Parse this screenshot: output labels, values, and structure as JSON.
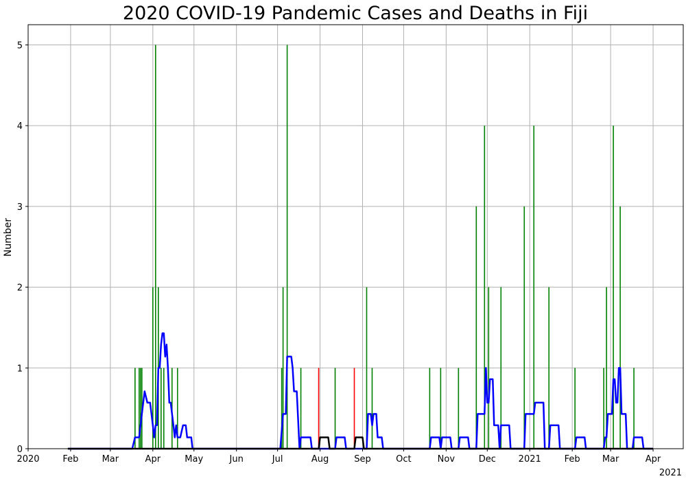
{
  "chart_data": {
    "type": "bar",
    "title": "2020 COVID-19 Pandemic Cases and Deaths in Fiji",
    "xlabel": "",
    "ylabel": "Number",
    "xlim": [
      "2020-01-01",
      "2021-04-23"
    ],
    "ylim": [
      0,
      5.25
    ],
    "grid": true,
    "y_ticks": [
      0,
      1,
      2,
      3,
      4,
      5
    ],
    "x_ticks": [
      {
        "date": "2020-01-01",
        "label": "2020"
      },
      {
        "date": "2020-02-01",
        "label": "Feb"
      },
      {
        "date": "2020-03-01",
        "label": "Mar"
      },
      {
        "date": "2020-04-01",
        "label": "Apr"
      },
      {
        "date": "2020-05-01",
        "label": "May"
      },
      {
        "date": "2020-06-01",
        "label": "Jun"
      },
      {
        "date": "2020-07-01",
        "label": "Jul"
      },
      {
        "date": "2020-08-01",
        "label": "Aug"
      },
      {
        "date": "2020-09-01",
        "label": "Sep"
      },
      {
        "date": "2020-10-01",
        "label": "Oct"
      },
      {
        "date": "2020-11-01",
        "label": "Nov"
      },
      {
        "date": "2020-12-01",
        "label": "Dec"
      },
      {
        "date": "2021-01-01",
        "label": "2021"
      },
      {
        "date": "2021-02-01",
        "label": "Feb"
      },
      {
        "date": "2021-03-01",
        "label": "Mar"
      },
      {
        "date": "2021-04-01",
        "label": "Apr"
      }
    ],
    "offset_label": "2021",
    "colors": {
      "cases": "#008000",
      "deaths": "#ff0000",
      "cases_avg": "#0000ff",
      "deaths_avg": "#000000"
    },
    "series": [
      {
        "kind": "bar",
        "color": "#008000",
        "points": [
          [
            "2020-03-19",
            1
          ],
          [
            "2020-03-22",
            1
          ],
          [
            "2020-03-23",
            1
          ],
          [
            "2020-03-24",
            1
          ],
          [
            "2020-04-01",
            2
          ],
          [
            "2020-04-03",
            5
          ],
          [
            "2020-04-05",
            2
          ],
          [
            "2020-04-07",
            1
          ],
          [
            "2020-04-09",
            1
          ],
          [
            "2020-04-15",
            1
          ],
          [
            "2020-04-19",
            1
          ],
          [
            "2020-07-04",
            1
          ],
          [
            "2020-07-05",
            2
          ],
          [
            "2020-07-08",
            5
          ],
          [
            "2020-07-18",
            1
          ],
          [
            "2020-08-12",
            1
          ],
          [
            "2020-09-04",
            2
          ],
          [
            "2020-09-08",
            1
          ],
          [
            "2020-10-20",
            1
          ],
          [
            "2020-10-28",
            1
          ],
          [
            "2020-11-10",
            1
          ],
          [
            "2020-11-23",
            3
          ],
          [
            "2020-11-29",
            4
          ],
          [
            "2020-12-02",
            2
          ],
          [
            "2020-12-11",
            2
          ],
          [
            "2020-12-28",
            3
          ],
          [
            "2021-01-04",
            4
          ],
          [
            "2021-01-15",
            2
          ],
          [
            "2021-02-03",
            1
          ],
          [
            "2021-02-24",
            1
          ],
          [
            "2021-02-26",
            2
          ],
          [
            "2021-03-03",
            4
          ],
          [
            "2021-03-08",
            3
          ],
          [
            "2021-03-18",
            1
          ]
        ]
      },
      {
        "kind": "bar",
        "color": "#ff0000",
        "points": [
          [
            "2020-07-31",
            1
          ],
          [
            "2020-08-26",
            1
          ]
        ]
      },
      {
        "kind": "line",
        "color": "#0000ff",
        "points": [
          [
            "2020-01-30",
            0
          ],
          [
            "2020-03-17",
            0
          ],
          [
            "2020-03-19",
            0.14
          ],
          [
            "2020-03-22",
            0.14
          ],
          [
            "2020-03-24",
            0.43
          ],
          [
            "2020-03-26",
            0.71
          ],
          [
            "2020-03-28",
            0.57
          ],
          [
            "2020-03-30",
            0.57
          ],
          [
            "2020-04-01",
            0.29
          ],
          [
            "2020-04-02",
            0.14
          ],
          [
            "2020-04-03",
            0.29
          ],
          [
            "2020-04-04",
            0.29
          ],
          [
            "2020-04-05",
            1.0
          ],
          [
            "2020-04-06",
            1.0
          ],
          [
            "2020-04-07",
            1.29
          ],
          [
            "2020-04-08",
            1.43
          ],
          [
            "2020-04-09",
            1.43
          ],
          [
            "2020-04-10",
            1.14
          ],
          [
            "2020-04-11",
            1.29
          ],
          [
            "2020-04-12",
            1.0
          ],
          [
            "2020-04-13",
            0.57
          ],
          [
            "2020-04-14",
            0.57
          ],
          [
            "2020-04-16",
            0.29
          ],
          [
            "2020-04-17",
            0.14
          ],
          [
            "2020-04-18",
            0.29
          ],
          [
            "2020-04-19",
            0.14
          ],
          [
            "2020-04-20",
            0.14
          ],
          [
            "2020-04-21",
            0.14
          ],
          [
            "2020-04-23",
            0.29
          ],
          [
            "2020-04-25",
            0.29
          ],
          [
            "2020-04-26",
            0.14
          ],
          [
            "2020-04-29",
            0.14
          ],
          [
            "2020-04-30",
            0
          ],
          [
            "2020-07-03",
            0
          ],
          [
            "2020-07-05",
            0.43
          ],
          [
            "2020-07-07",
            0.43
          ],
          [
            "2020-07-08",
            1.14
          ],
          [
            "2020-07-11",
            1.14
          ],
          [
            "2020-07-12",
            1.0
          ],
          [
            "2020-07-13",
            0.71
          ],
          [
            "2020-07-15",
            0.71
          ],
          [
            "2020-07-17",
            0
          ],
          [
            "2020-07-18",
            0.14
          ],
          [
            "2020-07-25",
            0.14
          ],
          [
            "2020-07-26",
            0
          ],
          [
            "2020-08-12",
            0
          ],
          [
            "2020-08-13",
            0.14
          ],
          [
            "2020-08-19",
            0.14
          ],
          [
            "2020-08-20",
            0
          ],
          [
            "2020-09-04",
            0
          ],
          [
            "2020-09-05",
            0.43
          ],
          [
            "2020-09-07",
            0.43
          ],
          [
            "2020-09-08",
            0.29
          ],
          [
            "2020-09-09",
            0.43
          ],
          [
            "2020-09-11",
            0.43
          ],
          [
            "2020-09-12",
            0.14
          ],
          [
            "2020-09-15",
            0.14
          ],
          [
            "2020-09-16",
            0
          ],
          [
            "2020-10-20",
            0
          ],
          [
            "2020-10-21",
            0.14
          ],
          [
            "2020-10-27",
            0.14
          ],
          [
            "2020-10-28",
            0
          ],
          [
            "2020-10-29",
            0.14
          ],
          [
            "2020-11-04",
            0.14
          ],
          [
            "2020-11-05",
            0
          ],
          [
            "2020-11-10",
            0
          ],
          [
            "2020-11-11",
            0.14
          ],
          [
            "2020-11-17",
            0.14
          ],
          [
            "2020-11-18",
            0
          ],
          [
            "2020-11-23",
            0
          ],
          [
            "2020-11-24",
            0.43
          ],
          [
            "2020-11-29",
            0.43
          ],
          [
            "2020-11-30",
            1.0
          ],
          [
            "2020-12-01",
            0.57
          ],
          [
            "2020-12-02",
            0.57
          ],
          [
            "2020-12-03",
            0.86
          ],
          [
            "2020-12-05",
            0.86
          ],
          [
            "2020-12-06",
            0.29
          ],
          [
            "2020-12-09",
            0.29
          ],
          [
            "2020-12-10",
            0
          ],
          [
            "2020-12-11",
            0.29
          ],
          [
            "2020-12-17",
            0.29
          ],
          [
            "2020-12-18",
            0
          ],
          [
            "2020-12-28",
            0
          ],
          [
            "2020-12-29",
            0.43
          ],
          [
            "2021-01-04",
            0.43
          ],
          [
            "2021-01-05",
            0.57
          ],
          [
            "2021-01-11",
            0.57
          ],
          [
            "2021-01-12",
            0
          ],
          [
            "2021-01-15",
            0
          ],
          [
            "2021-01-16",
            0.29
          ],
          [
            "2021-01-22",
            0.29
          ],
          [
            "2021-01-23",
            0
          ],
          [
            "2021-02-03",
            0
          ],
          [
            "2021-02-04",
            0.14
          ],
          [
            "2021-02-10",
            0.14
          ],
          [
            "2021-02-11",
            0
          ],
          [
            "2021-02-24",
            0
          ],
          [
            "2021-02-25",
            0.14
          ],
          [
            "2021-02-26",
            0.14
          ],
          [
            "2021-02-27",
            0.43
          ],
          [
            "2021-03-02",
            0.43
          ],
          [
            "2021-03-03",
            0.86
          ],
          [
            "2021-03-04",
            0.86
          ],
          [
            "2021-03-05",
            0.57
          ],
          [
            "2021-03-06",
            0.57
          ],
          [
            "2021-03-07",
            1.0
          ],
          [
            "2021-03-08",
            1.0
          ],
          [
            "2021-03-09",
            0.43
          ],
          [
            "2021-03-12",
            0.43
          ],
          [
            "2021-03-13",
            0
          ],
          [
            "2021-03-17",
            0
          ],
          [
            "2021-03-18",
            0.14
          ],
          [
            "2021-03-24",
            0.14
          ],
          [
            "2021-03-25",
            0
          ],
          [
            "2021-04-01",
            0
          ]
        ]
      },
      {
        "kind": "line",
        "color": "#000000",
        "points": [
          [
            "2020-01-30",
            0
          ],
          [
            "2020-07-31",
            0
          ],
          [
            "2020-08-01",
            0.14
          ],
          [
            "2020-08-07",
            0.14
          ],
          [
            "2020-08-08",
            0
          ],
          [
            "2020-08-26",
            0
          ],
          [
            "2020-08-27",
            0.14
          ],
          [
            "2020-09-01",
            0.14
          ],
          [
            "2020-09-02",
            0
          ],
          [
            "2021-04-01",
            0
          ]
        ]
      }
    ]
  }
}
